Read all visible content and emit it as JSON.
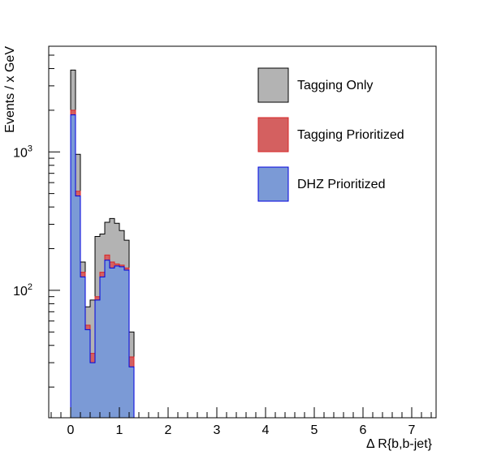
{
  "chart_data": {
    "type": "histogram-stacked-overlay",
    "xlabel": "Δ R{b,b-jet}",
    "ylabel": "Events / x GeV",
    "xlim": [
      -0.45,
      7.5
    ],
    "ylim": [
      12,
      5800
    ],
    "yscale": "log",
    "grid": false,
    "legend_placement": "top-right",
    "x_ticks": [
      0,
      1,
      2,
      3,
      4,
      5,
      6,
      7
    ],
    "x_tick_labels": [
      "0",
      "1",
      "2",
      "3",
      "4",
      "5",
      "6",
      "7"
    ],
    "y_ticks": [
      100,
      1000
    ],
    "y_tick_labels": [
      "10^2",
      "10^3"
    ],
    "bin_edges": [
      0.0,
      0.1,
      0.2,
      0.3,
      0.4,
      0.5,
      0.6,
      0.7,
      0.8,
      0.9,
      1.0,
      1.1,
      1.2,
      1.3
    ],
    "series": [
      {
        "name": "Tagging Only",
        "fill": "#b3b3b3",
        "line": "#000000",
        "values": [
          3900,
          960,
          160,
          76,
          85,
          245,
          255,
          310,
          330,
          305,
          270,
          230,
          50
        ]
      },
      {
        "name": "Tagging Prioritized",
        "fill": "#d46060",
        "line": "#d92626",
        "values": [
          2000,
          520,
          135,
          56,
          35,
          90,
          135,
          180,
          160,
          155,
          152,
          145,
          33
        ]
      },
      {
        "name": "DHZ Prioritized",
        "fill": "#7b9ad6",
        "line": "#0000dd",
        "values": [
          1850,
          480,
          125,
          52,
          30,
          85,
          125,
          165,
          145,
          150,
          148,
          140,
          28
        ]
      }
    ]
  }
}
